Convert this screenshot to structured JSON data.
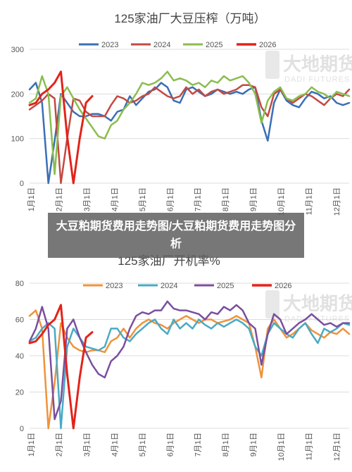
{
  "banner": {
    "text": "大豆粕期货费用走势图/大豆粕期货费用走势图分析"
  },
  "watermark": {
    "brand": "大地期货",
    "brand_en": "DADI FUTURES"
  },
  "chart_data": [
    {
      "type": "line",
      "title": "125家油厂大豆压榨（万吨）",
      "xlabel": "",
      "ylabel": "",
      "ylim": [
        0,
        300
      ],
      "yticks": [
        0,
        100,
        200,
        300
      ],
      "xticks": [
        "1月1日",
        "2月1日",
        "3月1日",
        "4月1日",
        "5月1日",
        "6月1日",
        "7月1日",
        "8月1日",
        "9月1日",
        "10月1日",
        "11月1日",
        "12月1日"
      ],
      "grid": "horizontal",
      "legend": "top",
      "x_unit": "week",
      "series": [
        {
          "name": "2023",
          "color": "#3a6fb5",
          "x": [
            0,
            1,
            2,
            3,
            4,
            5,
            6,
            7,
            8,
            9,
            10,
            11,
            12,
            13,
            14,
            15,
            16,
            17,
            18,
            19,
            20,
            21,
            22,
            23,
            24,
            25,
            26,
            27,
            28,
            29,
            30,
            31,
            32,
            33,
            34,
            35,
            36,
            37,
            38,
            39,
            40,
            41,
            42,
            43,
            44,
            45,
            46,
            47,
            48,
            49,
            50,
            51
          ],
          "values": [
            210,
            225,
            180,
            0,
            95,
            200,
            180,
            160,
            150,
            150,
            155,
            155,
            150,
            140,
            160,
            165,
            195,
            175,
            190,
            205,
            210,
            225,
            215,
            185,
            180,
            210,
            215,
            205,
            195,
            200,
            210,
            205,
            200,
            205,
            200,
            210,
            215,
            140,
            95,
            180,
            210,
            185,
            175,
            170,
            190,
            205,
            200,
            190,
            195,
            180,
            175,
            180
          ]
        },
        {
          "name": "2024",
          "color": "#c24a43",
          "x": [
            0,
            1,
            2,
            3,
            4,
            5,
            6,
            7,
            8,
            9,
            10,
            11,
            12,
            13,
            14,
            15,
            16,
            17,
            18,
            19,
            20,
            21,
            22,
            23,
            24,
            25,
            26,
            27,
            28,
            29,
            30,
            31,
            32,
            33,
            34,
            35,
            36,
            37,
            38,
            39,
            40,
            41,
            42,
            43,
            44,
            45,
            46,
            47,
            48,
            49,
            50,
            51
          ],
          "values": [
            165,
            175,
            185,
            200,
            190,
            0,
            100,
            190,
            185,
            160,
            150,
            150,
            150,
            175,
            195,
            190,
            180,
            185,
            195,
            200,
            215,
            205,
            195,
            190,
            195,
            215,
            200,
            210,
            195,
            205,
            210,
            200,
            205,
            210,
            220,
            220,
            215,
            170,
            150,
            200,
            210,
            190,
            180,
            190,
            200,
            195,
            185,
            175,
            190,
            200,
            195,
            210
          ]
        },
        {
          "name": "2025",
          "color": "#8bbd4f",
          "x": [
            0,
            1,
            2,
            3,
            4,
            5,
            6,
            7,
            8,
            9,
            10,
            11,
            12,
            13,
            14,
            15,
            16,
            17,
            18,
            19,
            20,
            21,
            22,
            23,
            24,
            25,
            26,
            27,
            28,
            29,
            30,
            31,
            32,
            33,
            34,
            35,
            36,
            37,
            38,
            39,
            40,
            41,
            42,
            43,
            44,
            45,
            46,
            47,
            48,
            49,
            50,
            51
          ],
          "values": [
            180,
            190,
            240,
            200,
            20,
            195,
            215,
            190,
            165,
            145,
            125,
            105,
            100,
            130,
            140,
            165,
            180,
            200,
            225,
            220,
            225,
            235,
            250,
            230,
            235,
            230,
            220,
            225,
            215,
            230,
            225,
            240,
            230,
            235,
            240,
            225,
            200,
            135,
            185,
            205,
            215,
            190,
            185,
            195,
            200,
            215,
            205,
            200,
            190,
            205,
            200,
            195
          ]
        },
        {
          "name": "2026",
          "color": "#e3231a",
          "x": [
            0,
            1,
            2,
            3,
            4,
            5,
            6,
            7,
            8,
            9,
            10
          ],
          "values": [
            175,
            180,
            200,
            210,
            225,
            250,
            105,
            0,
            100,
            180,
            195
          ]
        }
      ]
    },
    {
      "type": "line",
      "title": "125家油厂开机率%",
      "xlabel": "",
      "ylabel": "",
      "ylim": [
        0,
        80
      ],
      "yticks": [
        0,
        20,
        40,
        60,
        80
      ],
      "xticks": [
        "1月1日",
        "2月1日",
        "3月1日",
        "4月1日",
        "5月1日",
        "6月1日",
        "7月1日",
        "8月1日",
        "9月1日",
        "10月1日",
        "11月1日",
        "12月1日"
      ],
      "grid": "horizontal",
      "legend": "top",
      "x_unit": "week",
      "series": [
        {
          "name": "2023",
          "color": "#f0923a",
          "x": [
            0,
            1,
            2,
            3,
            4,
            5,
            6,
            7,
            8,
            9,
            10,
            11,
            12,
            13,
            14,
            15,
            16,
            17,
            18,
            19,
            20,
            21,
            22,
            23,
            24,
            25,
            26,
            27,
            28,
            29,
            30,
            31,
            32,
            33,
            34,
            35,
            36,
            37,
            38,
            39,
            40,
            41,
            42,
            43,
            44,
            45,
            46,
            47,
            48,
            49,
            50,
            51
          ],
          "values": [
            62,
            65,
            55,
            0,
            25,
            58,
            50,
            45,
            43,
            42,
            43,
            43,
            42,
            48,
            50,
            55,
            50,
            55,
            58,
            60,
            58,
            57,
            55,
            58,
            60,
            62,
            60,
            58,
            60,
            60,
            58,
            59,
            60,
            62,
            60,
            58,
            45,
            28,
            55,
            60,
            55,
            50,
            52,
            55,
            58,
            54,
            52,
            50,
            53,
            52,
            55,
            52
          ]
        },
        {
          "name": "2024",
          "color": "#4aaac4",
          "x": [
            0,
            1,
            2,
            3,
            4,
            5,
            6,
            7,
            8,
            9,
            10,
            11,
            12,
            13,
            14,
            15,
            16,
            17,
            18,
            19,
            20,
            21,
            22,
            23,
            24,
            25,
            26,
            27,
            28,
            29,
            30,
            31,
            32,
            33,
            34,
            35,
            36,
            37,
            38,
            39,
            40,
            41,
            42,
            43,
            44,
            45,
            46,
            47,
            48,
            49,
            50,
            51
          ],
          "values": [
            48,
            50,
            55,
            58,
            55,
            0,
            45,
            55,
            50,
            45,
            44,
            43,
            45,
            55,
            55,
            50,
            48,
            52,
            55,
            58,
            60,
            55,
            52,
            60,
            55,
            58,
            55,
            60,
            57,
            55,
            58,
            56,
            58,
            60,
            58,
            55,
            45,
            40,
            52,
            58,
            55,
            52,
            50,
            55,
            58,
            52,
            47,
            55,
            53,
            55,
            58,
            57
          ]
        },
        {
          "name": "2025",
          "color": "#7a4f9e",
          "x": [
            0,
            1,
            2,
            3,
            4,
            5,
            6,
            7,
            8,
            9,
            10,
            11,
            12,
            13,
            14,
            15,
            16,
            17,
            18,
            19,
            20,
            21,
            22,
            23,
            24,
            25,
            26,
            27,
            28,
            29,
            30,
            31,
            32,
            33,
            34,
            35,
            36,
            37,
            38,
            39,
            40,
            41,
            42,
            43,
            44,
            45,
            46,
            47,
            48,
            49,
            50,
            51
          ],
          "values": [
            48,
            55,
            67,
            55,
            5,
            15,
            55,
            60,
            50,
            42,
            35,
            30,
            28,
            37,
            40,
            45,
            55,
            62,
            64,
            63,
            65,
            65,
            70,
            66,
            65,
            65,
            64,
            63,
            60,
            64,
            63,
            67,
            65,
            68,
            65,
            58,
            55,
            35,
            52,
            63,
            60,
            52,
            55,
            58,
            60,
            63,
            60,
            57,
            58,
            56,
            58,
            58
          ]
        },
        {
          "name": "2026",
          "color": "#e3231a",
          "x": [
            0,
            1,
            2,
            3,
            4,
            5,
            6,
            7,
            8,
            9,
            10
          ],
          "values": [
            47,
            48,
            52,
            57,
            60,
            68,
            30,
            0,
            28,
            50,
            53
          ]
        }
      ]
    }
  ]
}
